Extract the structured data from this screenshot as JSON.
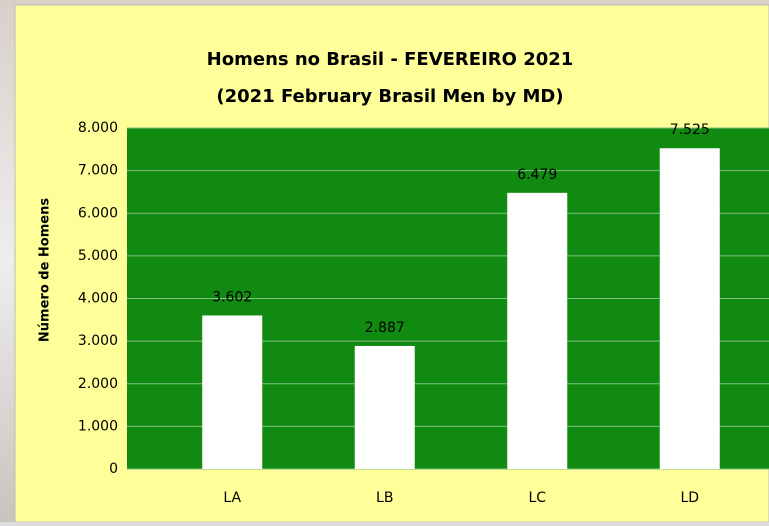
{
  "chart_data": {
    "type": "bar",
    "title": "Homens no Brasil  - FEVEREIRO 2021",
    "subtitle": "(2021 February Brasil Men by MD)",
    "y_label": "Número de Homens",
    "categories": [
      "LA",
      "LB",
      "LC",
      "LD"
    ],
    "values": [
      3602,
      2887,
      6479,
      7525
    ],
    "value_labels": [
      "3.602",
      "2.887",
      "6.479",
      "7.525"
    ],
    "color": "#ffffff",
    "plot_color": "#108a10",
    "ylim": [
      0,
      8000
    ],
    "yticks": [
      0,
      {
        "value": 1000,
        "label": "1.000"
      },
      {
        "value": 2000,
        "label": "2.000"
      },
      {
        "value": 3000,
        "label": "3.000"
      },
      {
        "value": 4000,
        "label": "4.000"
      },
      {
        "value": 5000,
        "label": "5.000"
      },
      {
        "value": 6000,
        "label": "6.000"
      },
      {
        "value": 7000,
        "label": "7.000"
      },
      {
        "value": 8000,
        "label": "8.000"
      }
    ],
    "grid": true
  }
}
